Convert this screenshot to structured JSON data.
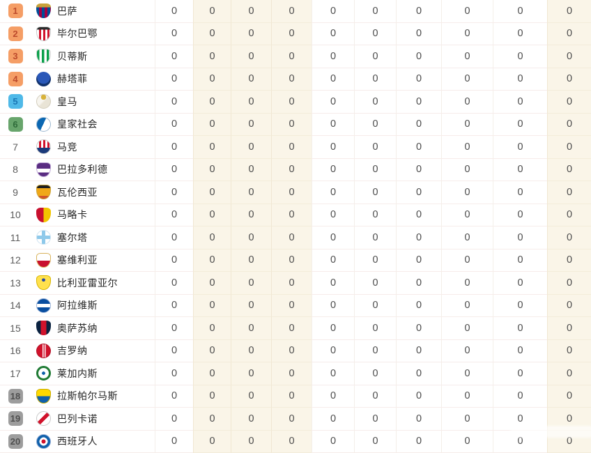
{
  "colors": {
    "zone_orange_bg": "#f59e66",
    "zone_orange_text": "#bc4a2c",
    "zone_cyan_bg": "#4fb9e8",
    "zone_cyan_text": "#1a76b4",
    "zone_green_bg": "#68a56c",
    "zone_green_text": "#2f6b3a",
    "zone_gray_bg": "#9d9d9d",
    "zone_gray_text": "#4f4f4f",
    "stripe_cream": "#faf5e8"
  },
  "table": {
    "stat_columns": 10,
    "cream_column_indexes": [
      1,
      2,
      3,
      9
    ],
    "rows": [
      {
        "rank": "1",
        "zone": "orange",
        "logo": "barcelona",
        "team": "巴萨",
        "stats": [
          "0",
          "0",
          "0",
          "0",
          "0",
          "0",
          "0",
          "0",
          "0",
          "0"
        ]
      },
      {
        "rank": "2",
        "zone": "orange",
        "logo": "bilbao",
        "team": "毕尔巴鄂",
        "stats": [
          "0",
          "0",
          "0",
          "0",
          "0",
          "0",
          "0",
          "0",
          "0",
          "0"
        ]
      },
      {
        "rank": "3",
        "zone": "orange",
        "logo": "betis",
        "team": "贝蒂斯",
        "stats": [
          "0",
          "0",
          "0",
          "0",
          "0",
          "0",
          "0",
          "0",
          "0",
          "0"
        ]
      },
      {
        "rank": "4",
        "zone": "orange",
        "logo": "getafe",
        "team": "赫塔菲",
        "stats": [
          "0",
          "0",
          "0",
          "0",
          "0",
          "0",
          "0",
          "0",
          "0",
          "0"
        ]
      },
      {
        "rank": "5",
        "zone": "cyan",
        "logo": "realmadrid",
        "team": "皇马",
        "stats": [
          "0",
          "0",
          "0",
          "0",
          "0",
          "0",
          "0",
          "0",
          "0",
          "0"
        ]
      },
      {
        "rank": "6",
        "zone": "green",
        "logo": "sociedad",
        "team": "皇家社会",
        "stats": [
          "0",
          "0",
          "0",
          "0",
          "0",
          "0",
          "0",
          "0",
          "0",
          "0"
        ]
      },
      {
        "rank": "7",
        "zone": "none",
        "logo": "atletico",
        "team": "马竞",
        "stats": [
          "0",
          "0",
          "0",
          "0",
          "0",
          "0",
          "0",
          "0",
          "0",
          "0"
        ]
      },
      {
        "rank": "8",
        "zone": "none",
        "logo": "valladolid",
        "team": "巴拉多利德",
        "stats": [
          "0",
          "0",
          "0",
          "0",
          "0",
          "0",
          "0",
          "0",
          "0",
          "0"
        ]
      },
      {
        "rank": "9",
        "zone": "none",
        "logo": "valencia",
        "team": "瓦伦西亚",
        "stats": [
          "0",
          "0",
          "0",
          "0",
          "0",
          "0",
          "0",
          "0",
          "0",
          "0"
        ]
      },
      {
        "rank": "10",
        "zone": "none",
        "logo": "mallorca",
        "team": "马略卡",
        "stats": [
          "0",
          "0",
          "0",
          "0",
          "0",
          "0",
          "0",
          "0",
          "0",
          "0"
        ]
      },
      {
        "rank": "11",
        "zone": "none",
        "logo": "celta",
        "team": "塞尔塔",
        "stats": [
          "0",
          "0",
          "0",
          "0",
          "0",
          "0",
          "0",
          "0",
          "0",
          "0"
        ]
      },
      {
        "rank": "12",
        "zone": "none",
        "logo": "sevilla",
        "team": "塞维利亚",
        "stats": [
          "0",
          "0",
          "0",
          "0",
          "0",
          "0",
          "0",
          "0",
          "0",
          "0"
        ]
      },
      {
        "rank": "13",
        "zone": "none",
        "logo": "villarreal",
        "team": "比利亚雷亚尔",
        "stats": [
          "0",
          "0",
          "0",
          "0",
          "0",
          "0",
          "0",
          "0",
          "0",
          "0"
        ]
      },
      {
        "rank": "14",
        "zone": "none",
        "logo": "alaves",
        "team": "阿拉维斯",
        "stats": [
          "0",
          "0",
          "0",
          "0",
          "0",
          "0",
          "0",
          "0",
          "0",
          "0"
        ]
      },
      {
        "rank": "15",
        "zone": "none",
        "logo": "osasuna",
        "team": "奥萨苏纳",
        "stats": [
          "0",
          "0",
          "0",
          "0",
          "0",
          "0",
          "0",
          "0",
          "0",
          "0"
        ]
      },
      {
        "rank": "16",
        "zone": "none",
        "logo": "girona",
        "team": "吉罗纳",
        "stats": [
          "0",
          "0",
          "0",
          "0",
          "0",
          "0",
          "0",
          "0",
          "0",
          "0"
        ]
      },
      {
        "rank": "17",
        "zone": "none",
        "logo": "leganes",
        "team": "莱加内斯",
        "stats": [
          "0",
          "0",
          "0",
          "0",
          "0",
          "0",
          "0",
          "0",
          "0",
          "0"
        ]
      },
      {
        "rank": "18",
        "zone": "gray",
        "logo": "laspalmas",
        "team": "拉斯帕尔马斯",
        "stats": [
          "0",
          "0",
          "0",
          "0",
          "0",
          "0",
          "0",
          "0",
          "0",
          "0"
        ]
      },
      {
        "rank": "19",
        "zone": "gray",
        "logo": "rayo",
        "team": "巴列卡诺",
        "stats": [
          "0",
          "0",
          "0",
          "0",
          "0",
          "0",
          "0",
          "0",
          "0",
          "0"
        ]
      },
      {
        "rank": "20",
        "zone": "gray",
        "logo": "espanyol",
        "team": "西班牙人",
        "stats": [
          "0",
          "0",
          "0",
          "0",
          "0",
          "0",
          "0",
          "0",
          "0",
          "0"
        ]
      }
    ]
  }
}
